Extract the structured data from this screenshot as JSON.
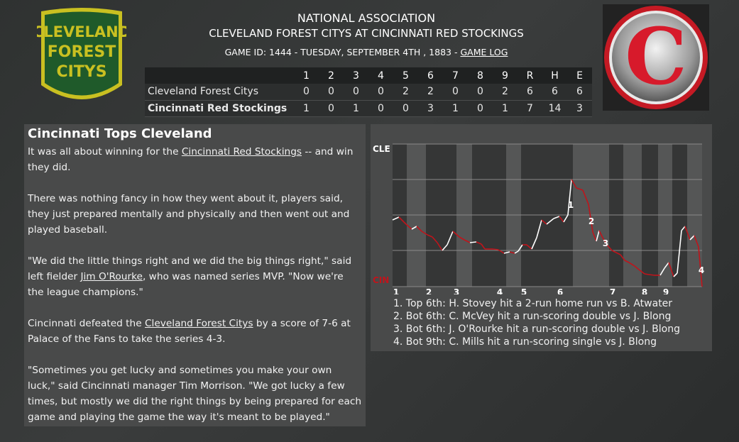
{
  "header": {
    "league": "NATIONAL ASSOCIATION",
    "matchup": "CLEVELAND FOREST CITYS AT CINCINNATI RED STOCKINGS",
    "meta": "GAME ID: 1444 - TUESDAY, SEPTEMBER 4TH , 1883 - ",
    "game_log_label": "GAME LOG"
  },
  "logos": {
    "away": {
      "line1": "CLEVELAND",
      "line2": "FOREST",
      "line3": "CITYS",
      "bg": "#1f5a2a",
      "border": "#c9c021"
    },
    "home": {
      "letter": "C",
      "color": "#d71a2b"
    }
  },
  "linescore": {
    "columns": [
      "1",
      "2",
      "3",
      "4",
      "5",
      "6",
      "7",
      "8",
      "9",
      "R",
      "H",
      "E"
    ],
    "rows": [
      {
        "team": "Cleveland Forest Citys",
        "values": [
          "0",
          "0",
          "0",
          "0",
          "2",
          "2",
          "0",
          "0",
          "2",
          "6",
          "6",
          "6"
        ]
      },
      {
        "team": "Cincinnati Red Stockings",
        "values": [
          "1",
          "0",
          "1",
          "0",
          "0",
          "3",
          "1",
          "0",
          "1",
          "7",
          "14",
          "3"
        ]
      }
    ]
  },
  "story": {
    "headline": "Cincinnati Tops Cleveland",
    "p1_a": "It was all about winning for the ",
    "p1_link": "Cincinnati Red Stockings",
    "p1_b": " -- and win they did.",
    "p2": "There was nothing fancy in how they went about it, players said, they just prepared mentally and physically and then went out and played baseball.",
    "p3_a": "\"We did the little things right and we did the big things right,\" said left fielder ",
    "p3_link": "Jim O'Rourke",
    "p3_b": ", who was named series MVP. \"Now we're the league champions.\"",
    "p4_a": "Cincinnati defeated the ",
    "p4_link": "Cleveland Forest Citys",
    "p4_b": " by a score of 7-6 at Palace of the Fans to take the series 4-3.",
    "p5": "\"Sometimes you get lucky and sometimes you make your own luck,\" said Cincinnati manager Tim Morrison. \"We got lucky a few times, but mostly we did the right things by being prepared for each game and playing the game the way it's meant to be played.\""
  },
  "win_probability": {
    "top_label": "CLE",
    "bottom_label": "CIN",
    "top_color": "#ffffff",
    "bottom_color": "#c0141b",
    "innings": [
      "1",
      "2",
      "3",
      "4",
      "5",
      "6",
      "7",
      "8",
      "9"
    ],
    "markers": [
      "1",
      "2",
      "3",
      "4"
    ],
    "notes": [
      "1. Top 6th: H. Stovey hit a 2-run home run vs B. Atwater",
      "2. Bot 6th: C. McVey hit a run-scoring double vs J. Blong",
      "3. Bot 6th: J. O'Rourke hit a run-scoring double vs J. Blong",
      "4. Bot 9th: C. Mills hit a run-scoring single vs J. Blong"
    ]
  }
}
